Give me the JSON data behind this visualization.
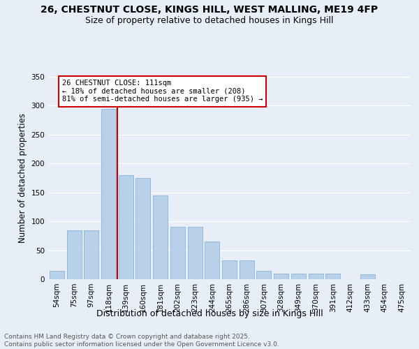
{
  "title_line1": "26, CHESTNUT CLOSE, KINGS HILL, WEST MALLING, ME19 4FP",
  "title_line2": "Size of property relative to detached houses in Kings Hill",
  "xlabel": "Distribution of detached houses by size in Kings Hill",
  "ylabel": "Number of detached properties",
  "categories": [
    "54sqm",
    "75sqm",
    "97sqm",
    "118sqm",
    "139sqm",
    "160sqm",
    "181sqm",
    "202sqm",
    "223sqm",
    "244sqm",
    "265sqm",
    "286sqm",
    "307sqm",
    "328sqm",
    "349sqm",
    "370sqm",
    "391sqm",
    "412sqm",
    "433sqm",
    "454sqm",
    "475sqm"
  ],
  "values": [
    15,
    85,
    85,
    295,
    180,
    175,
    145,
    90,
    90,
    65,
    32,
    32,
    15,
    10,
    10,
    10,
    10,
    0,
    8,
    0,
    0
  ],
  "bar_color_main": "#b8d0e8",
  "bar_edge_color": "#7aaed4",
  "vline_color": "#cc0000",
  "vline_x": 3.5,
  "annotation_text_line1": "26 CHESTNUT CLOSE: 111sqm",
  "annotation_text_line2": "← 18% of detached houses are smaller (208)",
  "annotation_text_line3": "81% of semi-detached houses are larger (935) →",
  "ylim": [
    0,
    350
  ],
  "yticks": [
    0,
    50,
    100,
    150,
    200,
    250,
    300,
    350
  ],
  "background_color": "#e8eef8",
  "plot_bg_color": "#e8eef8",
  "grid_color": "#ffffff",
  "title_fontsize": 10,
  "subtitle_fontsize": 9,
  "xlabel_fontsize": 9,
  "ylabel_fontsize": 8.5,
  "tick_fontsize": 7.5,
  "annot_fontsize": 7.5,
  "footer_fontsize": 6.5,
  "footer_text": "Contains HM Land Registry data © Crown copyright and database right 2025.\nContains public sector information licensed under the Open Government Licence v3.0."
}
